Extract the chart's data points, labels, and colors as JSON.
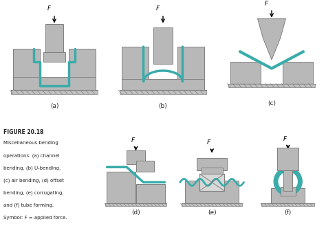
{
  "title": "FIGURE 20.18",
  "caption_lines": [
    "Miscellaneous bending",
    "operations: (a) channel",
    "bending, (b) U-bending,",
    "(c) air bending, (d) offset",
    "bending, (e) corrugating,",
    "and (f) tube forming.",
    "Symbol: F = applied force."
  ],
  "labels": [
    "(a)",
    "(b)",
    "(c)",
    "(d)",
    "(e)",
    "(f)"
  ],
  "gray": "#b8b8b8",
  "gray_edge": "#808080",
  "teal": "#3aacaa",
  "bg": "#ffffff",
  "text_color": "#222222"
}
